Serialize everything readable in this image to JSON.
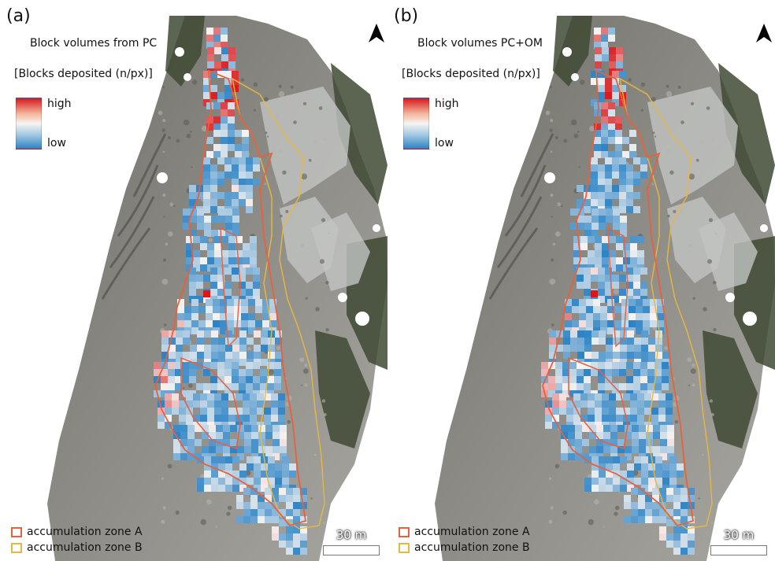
{
  "panels": [
    {
      "letter": "(a)",
      "title": "Block volumes from PC",
      "legend_title": "[Blocks deposited (n/px)]",
      "colorbar_high": "high",
      "colorbar_low": "low",
      "zone_a": "accumulation zone A",
      "zone_b": "accumulation zone B",
      "scale": "30 m",
      "variant": 0
    },
    {
      "letter": "(b)",
      "title": "Block volumes PC+OM",
      "legend_title": "[Blocks deposited (n/px)]",
      "colorbar_high": "high",
      "colorbar_low": "low",
      "zone_a": "accumulation zone A",
      "zone_b": "accumulation zone B",
      "scale": "30 m",
      "variant": 1
    }
  ],
  "colors": {
    "zone_a": "#e8603c",
    "zone_b": "#e6b840",
    "high": "#d7191c",
    "low": "#2c83c5",
    "mid": "#f7f4f2"
  },
  "icons": {
    "north": "north-arrow-icon"
  }
}
